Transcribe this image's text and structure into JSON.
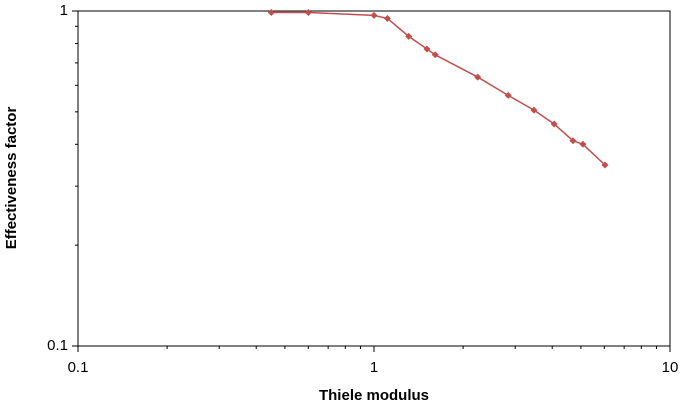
{
  "chart_data": {
    "type": "line",
    "xlabel": "Thiele modulus",
    "ylabel": "Effectiveness factor",
    "x": [
      0.45,
      0.6,
      1.0,
      1.11,
      1.31,
      1.51,
      1.61,
      2.24,
      2.84,
      3.47,
      4.06,
      4.7,
      5.08,
      6.03
    ],
    "series": [
      {
        "name": "Effectiveness factor",
        "color": "#c0504d",
        "values": [
          0.99,
          0.99,
          0.97,
          0.95,
          0.84,
          0.77,
          0.74,
          0.635,
          0.56,
          0.506,
          0.46,
          0.41,
          0.4,
          0.347
        ]
      }
    ],
    "xlim": [
      0.1,
      10
    ],
    "xticks": [
      0.1,
      1,
      10
    ],
    "ylim": [
      0.1,
      1
    ],
    "yticks": [
      0.1,
      1
    ],
    "xscale": "log",
    "yscale": "log"
  }
}
